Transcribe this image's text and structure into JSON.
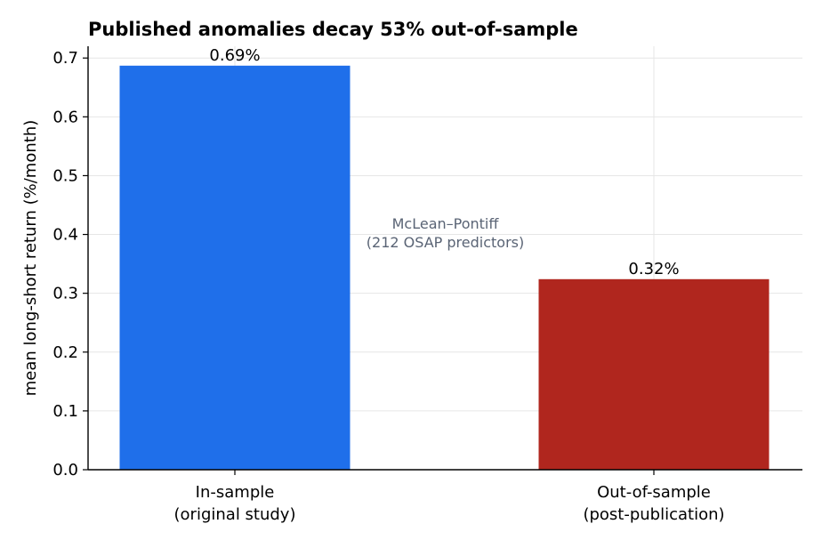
{
  "chart_data": {
    "type": "bar",
    "title": "Published anomalies decay 53% out-of-sample",
    "xlabel": "",
    "ylabel": "mean long-short return (%/month)",
    "categories": [
      [
        "In-sample",
        "(original study)"
      ],
      [
        "Out-of-sample",
        "(post-publication)"
      ]
    ],
    "values": [
      0.687,
      0.324
    ],
    "data_labels": [
      "0.69%",
      "0.32%"
    ],
    "colors": [
      "#1f6fea",
      "#b0261e"
    ],
    "ylim": [
      0,
      0.72
    ],
    "yticks": [
      0.0,
      0.1,
      0.2,
      0.3,
      0.4,
      0.5,
      0.6,
      0.7
    ],
    "ytick_labels": [
      "0.0",
      "0.1",
      "0.2",
      "0.3",
      "0.4",
      "0.5",
      "0.6",
      "0.7"
    ],
    "grid": true,
    "annotation": [
      "McLean–Pontiff",
      "(212 OSAP predictors)"
    ]
  }
}
